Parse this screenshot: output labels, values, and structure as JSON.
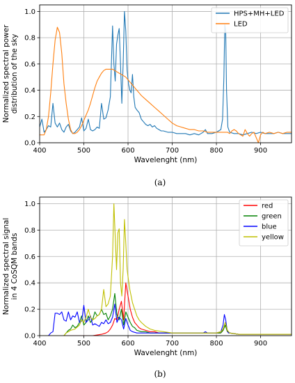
{
  "chart_data": [
    {
      "type": "line",
      "caption": "(a)",
      "xlabel": "Wavelenght (nm)",
      "ylabel": [
        "Normalized spectral power",
        "distribution of the sky"
      ],
      "xlim": [
        400,
        970
      ],
      "ylim": [
        0,
        1.05
      ],
      "xticks": [
        400,
        500,
        600,
        700,
        800,
        900
      ],
      "yticks": [
        0.0,
        0.2,
        0.4,
        0.6,
        0.8,
        1.0
      ],
      "grid": true,
      "legend_position": "top-right",
      "series": [
        {
          "name": "HPS+MH+LED",
          "color": "#1f77b4",
          "x": [
            400,
            405,
            410,
            415,
            420,
            425,
            430,
            435,
            440,
            445,
            450,
            455,
            460,
            465,
            470,
            475,
            480,
            485,
            490,
            495,
            500,
            505,
            510,
            515,
            520,
            525,
            530,
            535,
            540,
            545,
            550,
            555,
            560,
            565,
            568,
            571,
            574,
            577,
            580,
            583,
            586,
            589,
            592,
            595,
            598,
            601,
            604,
            607,
            610,
            613,
            616,
            620,
            625,
            630,
            635,
            640,
            645,
            650,
            655,
            660,
            665,
            670,
            675,
            680,
            690,
            700,
            710,
            720,
            730,
            740,
            750,
            760,
            765,
            770,
            775,
            780,
            790,
            800,
            810,
            814,
            817,
            819,
            821,
            823,
            826,
            830,
            840,
            850,
            860,
            870,
            880,
            890,
            900,
            910,
            920,
            930,
            940,
            950,
            960,
            970
          ],
          "y": [
            0.12,
            0.18,
            0.08,
            0.1,
            0.13,
            0.12,
            0.3,
            0.15,
            0.12,
            0.15,
            0.1,
            0.08,
            0.12,
            0.14,
            0.09,
            0.07,
            0.08,
            0.1,
            0.12,
            0.19,
            0.09,
            0.11,
            0.18,
            0.1,
            0.09,
            0.1,
            0.12,
            0.11,
            0.3,
            0.18,
            0.19,
            0.25,
            0.35,
            0.89,
            0.6,
            0.47,
            0.75,
            0.82,
            0.87,
            0.6,
            0.3,
            0.6,
            1.0,
            0.85,
            0.55,
            0.45,
            0.4,
            0.38,
            0.52,
            0.35,
            0.27,
            0.25,
            0.23,
            0.18,
            0.16,
            0.14,
            0.13,
            0.14,
            0.12,
            0.13,
            0.11,
            0.1,
            0.09,
            0.09,
            0.08,
            0.08,
            0.07,
            0.07,
            0.07,
            0.06,
            0.07,
            0.06,
            0.07,
            0.08,
            0.1,
            0.07,
            0.07,
            0.08,
            0.1,
            0.18,
            0.5,
            0.9,
            0.85,
            0.4,
            0.12,
            0.08,
            0.07,
            0.07,
            0.06,
            0.07,
            0.08,
            0.07,
            0.08,
            0.07,
            0.07,
            0.07,
            0.08,
            0.07,
            0.07,
            0.07
          ]
        },
        {
          "name": "LED",
          "color": "#ff7f0e",
          "x": [
            400,
            405,
            410,
            415,
            420,
            425,
            430,
            435,
            440,
            445,
            450,
            455,
            460,
            465,
            470,
            475,
            480,
            485,
            490,
            495,
            500,
            505,
            510,
            515,
            520,
            525,
            530,
            535,
            540,
            545,
            550,
            555,
            560,
            565,
            570,
            575,
            580,
            585,
            590,
            595,
            600,
            605,
            610,
            615,
            620,
            625,
            630,
            640,
            650,
            660,
            670,
            680,
            690,
            700,
            710,
            720,
            730,
            740,
            750,
            760,
            770,
            780,
            790,
            800,
            810,
            820,
            825,
            830,
            835,
            840,
            845,
            850,
            855,
            860,
            865,
            870,
            875,
            880,
            885,
            890,
            895,
            900,
            905,
            910,
            920,
            930,
            940,
            950,
            960,
            970
          ],
          "y": [
            0.06,
            0.06,
            0.06,
            0.1,
            0.2,
            0.38,
            0.6,
            0.78,
            0.88,
            0.84,
            0.68,
            0.45,
            0.3,
            0.18,
            0.1,
            0.07,
            0.07,
            0.08,
            0.1,
            0.13,
            0.17,
            0.21,
            0.25,
            0.3,
            0.36,
            0.42,
            0.47,
            0.5,
            0.53,
            0.55,
            0.56,
            0.56,
            0.56,
            0.56,
            0.55,
            0.54,
            0.53,
            0.52,
            0.51,
            0.5,
            0.48,
            0.46,
            0.44,
            0.42,
            0.4,
            0.38,
            0.36,
            0.33,
            0.3,
            0.27,
            0.24,
            0.21,
            0.18,
            0.15,
            0.13,
            0.12,
            0.11,
            0.1,
            0.1,
            0.09,
            0.09,
            0.08,
            0.08,
            0.08,
            0.08,
            0.08,
            0.08,
            0.07,
            0.09,
            0.1,
            0.09,
            0.07,
            0.06,
            0.05,
            0.1,
            0.07,
            0.05,
            0.07,
            0.08,
            0.04,
            0.0,
            0.06,
            0.08,
            0.07,
            0.08,
            0.07,
            0.08,
            0.07,
            0.08,
            0.08
          ]
        }
      ]
    },
    {
      "type": "line",
      "caption": "(b)",
      "xlabel": "Wavelenght (nm)",
      "ylabel": [
        "Normalized spectral signal",
        "in 4 CoSQM bands"
      ],
      "xlim": [
        400,
        970
      ],
      "ylim": [
        0,
        1.05
      ],
      "xticks": [
        400,
        500,
        600,
        700,
        800,
        900
      ],
      "yticks": [
        0.0,
        0.2,
        0.4,
        0.6,
        0.8,
        1.0
      ],
      "grid": true,
      "legend_position": "top-right",
      "series": [
        {
          "name": "red",
          "color": "#ff0000",
          "x": [
            400,
            460,
            500,
            520,
            540,
            550,
            555,
            560,
            565,
            570,
            575,
            580,
            585,
            590,
            595,
            600,
            605,
            610,
            615,
            620,
            625,
            630,
            640,
            650,
            660,
            670,
            680,
            700,
            750,
            800,
            810,
            815,
            820,
            825,
            830,
            850,
            900,
            970
          ],
          "y": [
            0,
            0,
            0,
            0,
            0.01,
            0.02,
            0.03,
            0.05,
            0.08,
            0.13,
            0.12,
            0.2,
            0.26,
            0.12,
            0.4,
            0.3,
            0.2,
            0.14,
            0.1,
            0.08,
            0.06,
            0.05,
            0.04,
            0.03,
            0.03,
            0.02,
            0.02,
            0.02,
            0.02,
            0.02,
            0.02,
            0.04,
            0.08,
            0.03,
            0.02,
            0.01,
            0.01,
            0.01
          ]
        },
        {
          "name": "green",
          "color": "#008000",
          "x": [
            400,
            455,
            460,
            465,
            470,
            475,
            480,
            485,
            490,
            495,
            500,
            505,
            510,
            515,
            520,
            525,
            530,
            535,
            540,
            545,
            550,
            555,
            560,
            565,
            570,
            575,
            580,
            585,
            590,
            595,
            600,
            605,
            610,
            615,
            620,
            630,
            640,
            650,
            700,
            750,
            800,
            810,
            815,
            820,
            825,
            830,
            850,
            900,
            970
          ],
          "y": [
            0,
            0,
            0.02,
            0.04,
            0.05,
            0.08,
            0.06,
            0.07,
            0.1,
            0.15,
            0.08,
            0.1,
            0.15,
            0.1,
            0.12,
            0.18,
            0.15,
            0.16,
            0.2,
            0.16,
            0.17,
            0.12,
            0.15,
            0.2,
            0.32,
            0.16,
            0.12,
            0.2,
            0.08,
            0.18,
            0.14,
            0.1,
            0.07,
            0.06,
            0.04,
            0.03,
            0.03,
            0.02,
            0.02,
            0.02,
            0.02,
            0.02,
            0.04,
            0.08,
            0.03,
            0.02,
            0.01,
            0.01,
            0.01
          ]
        },
        {
          "name": "blue",
          "color": "#0000ff",
          "x": [
            400,
            420,
            425,
            430,
            435,
            440,
            445,
            450,
            455,
            460,
            465,
            470,
            475,
            480,
            485,
            490,
            495,
            500,
            505,
            510,
            515,
            520,
            525,
            530,
            535,
            540,
            545,
            550,
            555,
            560,
            565,
            570,
            575,
            580,
            585,
            590,
            595,
            600,
            605,
            610,
            620,
            640,
            660,
            700,
            750,
            770,
            775,
            780,
            800,
            810,
            815,
            818,
            821,
            824,
            827,
            830,
            850,
            900,
            970
          ],
          "y": [
            0,
            0,
            0.02,
            0.03,
            0.17,
            0.17,
            0.16,
            0.18,
            0.12,
            0.11,
            0.18,
            0.12,
            0.15,
            0.14,
            0.18,
            0.1,
            0.11,
            0.23,
            0.1,
            0.12,
            0.15,
            0.08,
            0.09,
            0.08,
            0.07,
            0.1,
            0.09,
            0.12,
            0.09,
            0.1,
            0.14,
            0.24,
            0.1,
            0.14,
            0.12,
            0.05,
            0.13,
            0.08,
            0.04,
            0.03,
            0.02,
            0.02,
            0.02,
            0.02,
            0.02,
            0.02,
            0.03,
            0.02,
            0.02,
            0.03,
            0.08,
            0.16,
            0.12,
            0.05,
            0.02,
            0.02,
            0.01,
            0.01,
            0.01
          ]
        },
        {
          "name": "yellow",
          "color": "#bfbf00",
          "x": [
            400,
            455,
            460,
            470,
            480,
            490,
            495,
            500,
            505,
            510,
            515,
            520,
            525,
            530,
            535,
            540,
            545,
            550,
            555,
            560,
            565,
            568,
            571,
            574,
            577,
            580,
            583,
            586,
            589,
            592,
            595,
            598,
            601,
            604,
            607,
            610,
            615,
            620,
            625,
            630,
            640,
            650,
            660,
            680,
            700,
            750,
            800,
            810,
            815,
            820,
            825,
            830,
            850,
            900,
            970
          ],
          "y": [
            0,
            0,
            0.02,
            0.04,
            0.05,
            0.08,
            0.12,
            0.1,
            0.14,
            0.2,
            0.14,
            0.12,
            0.13,
            0.15,
            0.16,
            0.2,
            0.35,
            0.22,
            0.24,
            0.3,
            0.6,
            1.0,
            0.75,
            0.5,
            0.78,
            0.81,
            0.4,
            0.3,
            0.5,
            0.88,
            0.7,
            0.5,
            0.42,
            0.35,
            0.3,
            0.25,
            0.2,
            0.15,
            0.12,
            0.1,
            0.07,
            0.05,
            0.04,
            0.03,
            0.02,
            0.02,
            0.02,
            0.03,
            0.05,
            0.1,
            0.04,
            0.02,
            0.01,
            0.01,
            0.01
          ]
        }
      ]
    }
  ]
}
